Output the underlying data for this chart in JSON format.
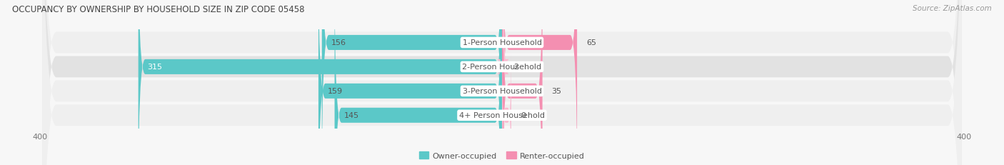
{
  "title": "OCCUPANCY BY OWNERSHIP BY HOUSEHOLD SIZE IN ZIP CODE 05458",
  "source": "Source: ZipAtlas.com",
  "categories": [
    "1-Person Household",
    "2-Person Household",
    "3-Person Household",
    "4+ Person Household"
  ],
  "owner_values": [
    156,
    315,
    159,
    145
  ],
  "renter_values": [
    65,
    2,
    35,
    0
  ],
  "owner_color": "#5bc8c8",
  "renter_color": "#f48fb1",
  "renter_color_2": "#f8bbd0",
  "axis_max": 400,
  "label_fontsize": 8,
  "title_fontsize": 8.5,
  "legend_fontsize": 8,
  "source_fontsize": 7.5,
  "tick_fontsize": 8,
  "figsize": [
    14.06,
    2.32
  ],
  "dpi": 100,
  "center_label_color": "#555555",
  "value_label_dark": "#555555",
  "white_label_color": "#ffffff",
  "row_bg_odd": "#efefef",
  "row_bg_even": "#e2e2e2",
  "fig_bg": "#f7f7f7"
}
